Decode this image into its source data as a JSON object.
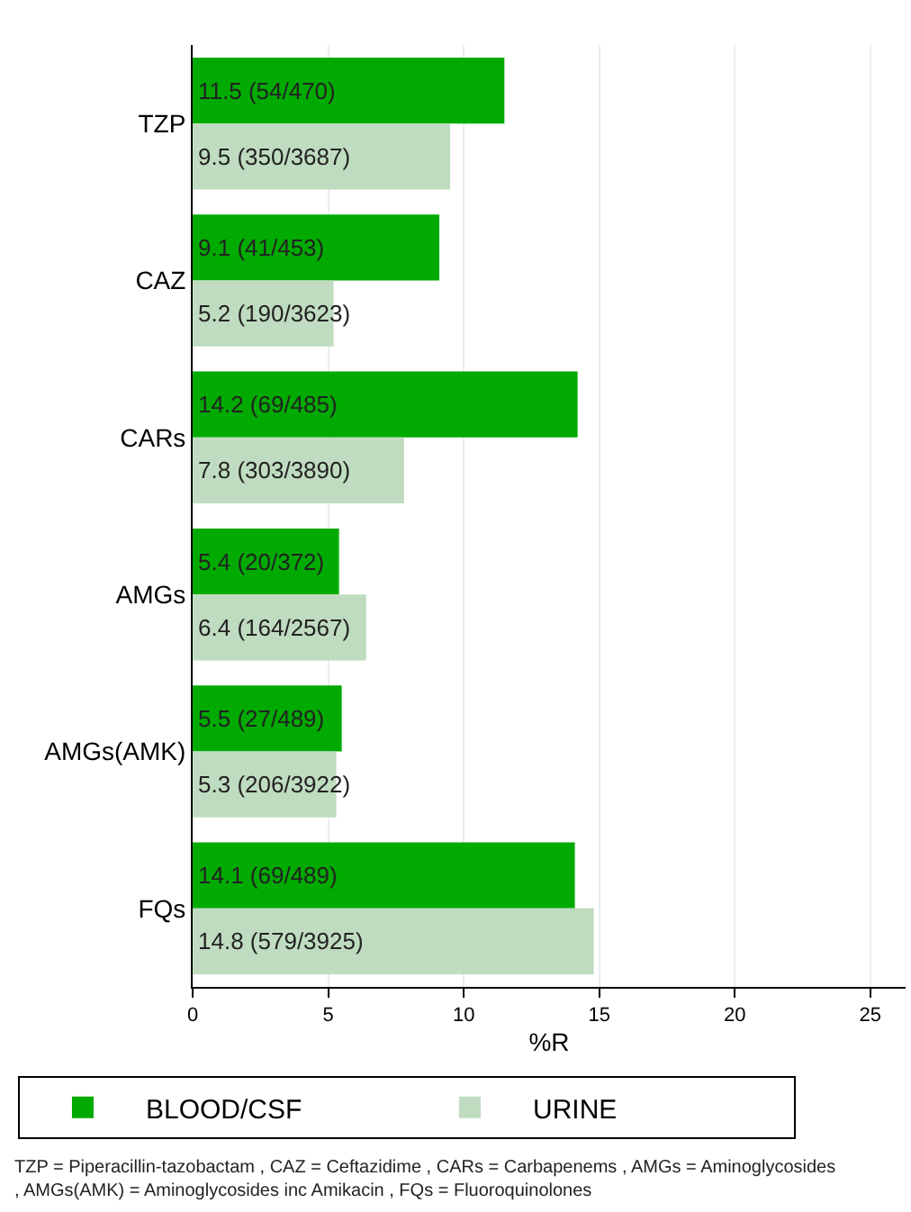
{
  "chart_data": {
    "type": "bar",
    "orientation": "horizontal",
    "categories": [
      "TZP",
      "CAZ",
      "CARs",
      "AMGs",
      "AMGs(AMK)",
      "FQs"
    ],
    "series": [
      {
        "name": "BLOOD/CSF",
        "color": "#00aa00",
        "values": [
          11.5,
          9.1,
          14.2,
          5.4,
          5.5,
          14.1
        ],
        "value_labels": [
          "11.5 (54/470)",
          "9.1 (41/453)",
          "14.2 (69/485)",
          "5.4 (20/372)",
          "5.5 (27/489)",
          "14.1 (69/489)"
        ]
      },
      {
        "name": "URINE",
        "color": "#c0dcc0",
        "values": [
          9.5,
          5.2,
          7.8,
          6.4,
          5.3,
          14.8
        ],
        "value_labels": [
          "9.5 (350/3687)",
          "5.2 (190/3623)",
          "7.8 (303/3890)",
          "6.4 (164/2567)",
          "5.3 (206/3922)",
          "14.8 (579/3925)"
        ]
      }
    ],
    "xlabel": "%R",
    "xlim": [
      0,
      26.3
    ],
    "xticks": [
      0,
      5,
      10,
      15,
      20,
      25
    ],
    "grid": "x",
    "legend": "bottom",
    "annotations": [
      "TZP = Piperacillin-tazobactam , CAZ = Ceftazidime , CARs = Carbapenems , AMGs = Aminoglycosides , AMGs(AMK) = Aminoglycosides inc Amikacin , FQs = Fluoroquinolones"
    ]
  }
}
